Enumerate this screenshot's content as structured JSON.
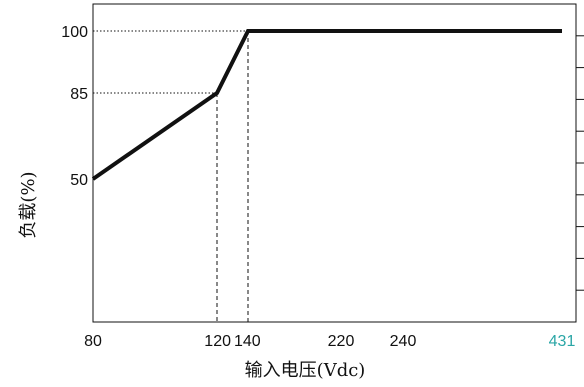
{
  "chart_data": {
    "type": "line",
    "title": "",
    "xlabel": "输入电压(Vdc)",
    "ylabel": "负载(%)",
    "x_ticks": [
      {
        "value": 80,
        "label": "80",
        "color": "#111111"
      },
      {
        "value": 120,
        "label": "120",
        "color": "#111111"
      },
      {
        "value": 140,
        "label": "140",
        "color": "#111111"
      },
      {
        "value": 220,
        "label": "220",
        "color": "#111111"
      },
      {
        "value": 240,
        "label": "240",
        "color": "#111111"
      },
      {
        "value": 431,
        "label": "431",
        "color": "#2aa6a6"
      }
    ],
    "y_ticks": [
      {
        "value": 50,
        "label": "50"
      },
      {
        "value": 85,
        "label": "85"
      },
      {
        "value": 100,
        "label": "100"
      }
    ],
    "series": [
      {
        "points": [
          {
            "x": 80,
            "y": 50
          },
          {
            "x": 120,
            "y": 85
          },
          {
            "x": 140,
            "y": 100
          },
          {
            "x": 431,
            "y": 100
          }
        ]
      }
    ],
    "reference_lines": [
      {
        "kind": "dotted",
        "from": {
          "x": 80,
          "y": 100
        },
        "to": {
          "x": 140,
          "y": 100
        }
      },
      {
        "kind": "dotted",
        "from": {
          "x": 80,
          "y": 85
        },
        "to": {
          "x": 120,
          "y": 85
        }
      },
      {
        "kind": "dashed",
        "from": {
          "x": 120,
          "y": 85
        },
        "to": {
          "x": 120,
          "y": 0
        }
      },
      {
        "kind": "dashed",
        "from": {
          "x": 140,
          "y": 100
        },
        "to": {
          "x": 140,
          "y": 0
        }
      }
    ],
    "right_axis_minor_ticks": 10,
    "grid": false,
    "line_color": "#111111"
  }
}
